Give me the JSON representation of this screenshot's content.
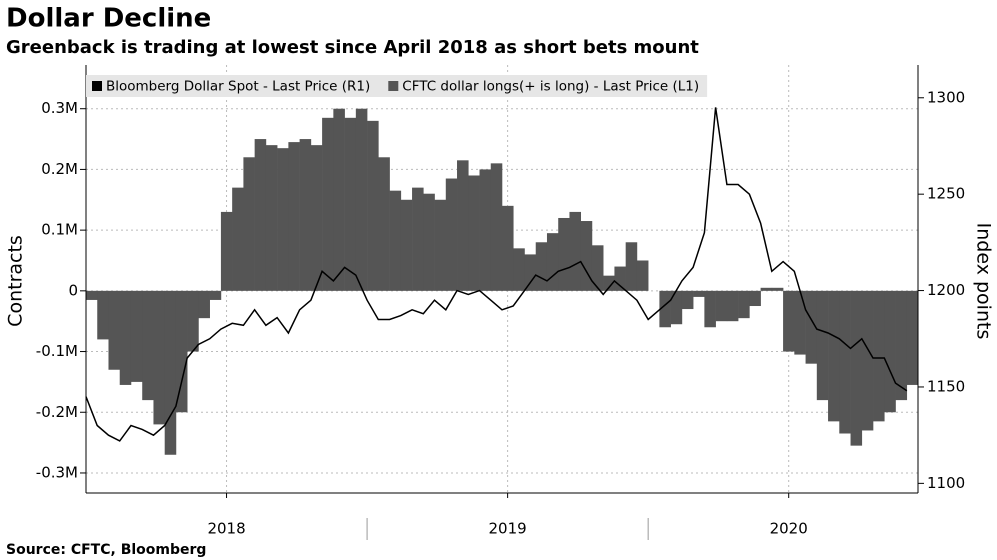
{
  "chart_data": {
    "type": "combo",
    "title": "Dollar Decline",
    "subtitle": "Greenback is trading at lowest since April 2018 as short bets mount",
    "source": "Source: CFTC, Bloomberg",
    "ylabel": "Contracts",
    "y2label": "Index points",
    "x": [
      2018.0,
      2018.04,
      2018.08,
      2018.12,
      2018.16,
      2018.2,
      2018.24,
      2018.28,
      2018.32,
      2018.36,
      2018.4,
      2018.44,
      2018.48,
      2018.52,
      2018.56,
      2018.6,
      2018.64,
      2018.68,
      2018.72,
      2018.76,
      2018.8,
      2018.84,
      2018.88,
      2018.92,
      2018.96,
      2019.0,
      2019.04,
      2019.08,
      2019.12,
      2019.16,
      2019.2,
      2019.24,
      2019.28,
      2019.32,
      2019.36,
      2019.4,
      2019.44,
      2019.48,
      2019.52,
      2019.56,
      2019.6,
      2019.64,
      2019.68,
      2019.72,
      2019.76,
      2019.8,
      2019.84,
      2019.88,
      2019.92,
      2019.96,
      2020.0,
      2020.04,
      2020.08,
      2020.12,
      2020.16,
      2020.2,
      2020.24,
      2020.28,
      2020.32,
      2020.36,
      2020.4,
      2020.44,
      2020.48,
      2020.52,
      2020.56,
      2020.6,
      2020.64,
      2020.68,
      2020.72,
      2020.76,
      2020.8,
      2020.84,
      2020.88,
      2020.92
    ],
    "series": [
      {
        "name": "Bloomberg Dollar Spot - Last Price (R1)",
        "type": "line",
        "axis": "y2",
        "color": "#000000",
        "values": [
          1145,
          1130,
          1125,
          1122,
          1130,
          1128,
          1125,
          1130,
          1140,
          1165,
          1172,
          1175,
          1180,
          1183,
          1182,
          1190,
          1182,
          1186,
          1178,
          1190,
          1195,
          1210,
          1205,
          1212,
          1208,
          1195,
          1185,
          1185,
          1187,
          1190,
          1188,
          1195,
          1190,
          1200,
          1198,
          1200,
          1195,
          1190,
          1192,
          1200,
          1208,
          1205,
          1210,
          1212,
          1215,
          1205,
          1198,
          1205,
          1200,
          1195,
          1185,
          1190,
          1195,
          1205,
          1212,
          1230,
          1295,
          1255,
          1255,
          1250,
          1235,
          1210,
          1215,
          1210,
          1190,
          1180,
          1178,
          1175,
          1170,
          1175,
          1165,
          1165,
          1152,
          1148
        ]
      },
      {
        "name": "CFTC dollar longs(+ is long) - Last Price (L1)",
        "type": "bar",
        "color": "#555555",
        "values": [
          -15000,
          -80000,
          -130000,
          -155000,
          -150000,
          -180000,
          -220000,
          -270000,
          -200000,
          -100000,
          -45000,
          -15000,
          130000,
          170000,
          220000,
          250000,
          240000,
          235000,
          245000,
          250000,
          240000,
          285000,
          300000,
          285000,
          300000,
          280000,
          220000,
          165000,
          150000,
          170000,
          160000,
          150000,
          185000,
          215000,
          190000,
          200000,
          210000,
          140000,
          70000,
          60000,
          80000,
          95000,
          120000,
          130000,
          115000,
          75000,
          25000,
          40000,
          80000,
          50000,
          0,
          -60000,
          -55000,
          -30000,
          -10000,
          -60000,
          -50000,
          -50000,
          -45000,
          -25000,
          5000,
          5000,
          -100000,
          -105000,
          -120000,
          -180000,
          -215000,
          -235000,
          -255000,
          -230000,
          -215000,
          -200000,
          -180000,
          -155000
        ]
      }
    ],
    "xlim": [
      2018,
      2020.96
    ],
    "xticks": [
      {
        "value": 2018.5,
        "label": "2018"
      },
      {
        "value": 2019.5,
        "label": "2019"
      },
      {
        "value": 2020.5,
        "label": "2020"
      }
    ],
    "ylim": [
      -333000,
      372000
    ],
    "yticks": [
      {
        "value": -300000,
        "label": "-0.3M"
      },
      {
        "value": -200000,
        "label": "-0.2M"
      },
      {
        "value": -100000,
        "label": "-0.1M"
      },
      0,
      {
        "value": 100000,
        "label": "0.1M"
      },
      {
        "value": 200000,
        "label": "0.2M"
      },
      {
        "value": 300000,
        "label": "0.3M"
      }
    ],
    "y2lim": [
      1095,
      1317
    ],
    "y2ticks": [
      1100,
      1150,
      1200,
      1250,
      1300
    ],
    "grid": true,
    "legend": "top-left"
  }
}
